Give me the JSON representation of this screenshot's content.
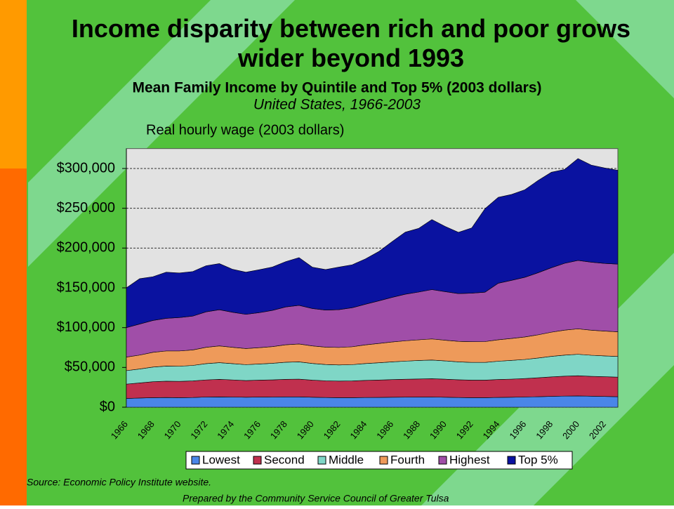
{
  "chart_data": {
    "type": "stacked_area",
    "title": "Income disparity between rich and poor grows wider beyond 1993",
    "subtitle": "Mean Family Income by Quintile and Top 5% (2003 dollars)",
    "subtitle2": "United States, 1966-2003",
    "y_label": "Real hourly wage (2003 dollars)",
    "source": "Source:  Economic Policy Institute website.",
    "credit": "Prepared by the Community Service Council of Greater Tulsa",
    "categories": [
      "1966",
      null,
      "1968",
      null,
      "1970",
      null,
      "1972",
      null,
      "1974",
      null,
      "1976",
      null,
      "1978",
      null,
      "1980",
      null,
      "1982",
      null,
      "1984",
      null,
      "1986",
      null,
      "1988",
      null,
      "1990",
      null,
      "1992",
      null,
      "1994",
      null,
      "1996",
      null,
      "1998",
      null,
      "2000",
      null,
      "2002",
      null
    ],
    "ylim": [
      0,
      325000
    ],
    "yticks": [
      {
        "value": 0,
        "label": "$0"
      },
      {
        "value": 50000,
        "label": "$50,000"
      },
      {
        "value": 100000,
        "label": "$100,000"
      },
      {
        "value": 150000,
        "label": "$150,000"
      },
      {
        "value": 200000,
        "label": "$200,000"
      },
      {
        "value": 250000,
        "label": "$250,000"
      },
      {
        "value": 300000,
        "label": "$300,000"
      }
    ],
    "grid": true,
    "legend": "bottom",
    "series": [
      {
        "name": "Lowest",
        "color": "#4a86e8",
        "values": [
          11000,
          11500,
          12000,
          12200,
          12000,
          12200,
          12800,
          13000,
          12800,
          12500,
          12700,
          12800,
          13000,
          13000,
          12500,
          12200,
          12000,
          12000,
          12200,
          12300,
          12500,
          12600,
          12700,
          12800,
          12500,
          12200,
          12000,
          12000,
          12300,
          12500,
          12800,
          13200,
          13600,
          14000,
          14200,
          13800,
          13500,
          13200
        ]
      },
      {
        "name": "Second",
        "color": "#c0304e",
        "values": [
          18000,
          19000,
          20000,
          20500,
          20500,
          20800,
          21500,
          22000,
          21500,
          21000,
          21300,
          21600,
          22000,
          22200,
          21500,
          21000,
          20800,
          21000,
          21500,
          21800,
          22200,
          22500,
          22800,
          23000,
          22700,
          22300,
          22000,
          22000,
          22500,
          22800,
          23200,
          23800,
          24500,
          25000,
          25300,
          25000,
          24800,
          24600
        ]
      },
      {
        "name": "Middle",
        "color": "#7fd6c6",
        "values": [
          17000,
          17500,
          18500,
          19000,
          19000,
          19500,
          20500,
          21000,
          20500,
          20000,
          20300,
          20800,
          21500,
          21800,
          21000,
          20500,
          20300,
          20500,
          21200,
          21800,
          22300,
          22800,
          23200,
          23500,
          23000,
          22500,
          22300,
          22300,
          23000,
          23500,
          24000,
          24800,
          25800,
          26500,
          27000,
          26500,
          26200,
          26000
        ]
      },
      {
        "name": "Fourth",
        "color": "#ee9a5a",
        "values": [
          17000,
          17500,
          18500,
          19000,
          19200,
          19500,
          20500,
          21000,
          20500,
          20200,
          20500,
          21000,
          22000,
          22500,
          22000,
          21800,
          22000,
          22500,
          23500,
          24200,
          25000,
          25600,
          26000,
          26500,
          26000,
          25800,
          26000,
          26200,
          27000,
          27600,
          28300,
          29200,
          30400,
          31400,
          32000,
          31500,
          31200,
          31000
        ]
      },
      {
        "name": "Highest",
        "color": "#a04ea8",
        "values": [
          37000,
          39000,
          40000,
          41000,
          42000,
          42500,
          44500,
          45500,
          44000,
          43000,
          44000,
          45500,
          47500,
          48500,
          47000,
          46500,
          47500,
          49000,
          51000,
          53500,
          56000,
          58500,
          60000,
          62000,
          61000,
          60000,
          61000,
          62000,
          71000,
          73000,
          75000,
          78000,
          81000,
          84000,
          86000,
          85500,
          85000,
          85000
        ]
      },
      {
        "name": "Top 5%",
        "color": "#0a12a0",
        "values": [
          50000,
          57000,
          55000,
          58000,
          56000,
          56000,
          58000,
          58000,
          54000,
          53000,
          54000,
          54500,
          57000,
          60000,
          52000,
          51000,
          53500,
          54000,
          57000,
          62000,
          70000,
          78000,
          80000,
          88000,
          82000,
          77000,
          82000,
          105000,
          108000,
          108000,
          110000,
          116000,
          120000,
          118000,
          128000,
          122000,
          120000,
          118000
        ]
      }
    ]
  }
}
